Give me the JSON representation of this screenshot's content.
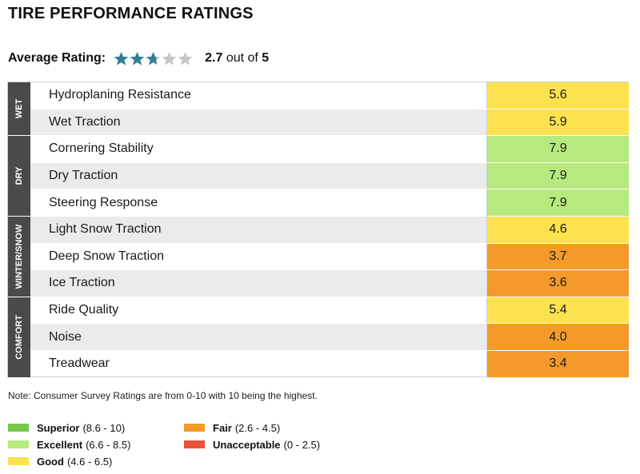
{
  "title": "TIRE PERFORMANCE RATINGS",
  "average": {
    "label": "Average Rating:",
    "value": "2.7",
    "suffix": "out of",
    "max": "5",
    "star_fill": 2.7,
    "star_color": "#2f7f99",
    "star_empty_color": "#c4c4c4"
  },
  "groups": [
    {
      "label": "WET",
      "rows": 2
    },
    {
      "label": "DRY",
      "rows": 3
    },
    {
      "label": "WINTER/SNOW",
      "rows": 3
    },
    {
      "label": "COMFORT",
      "rows": 3
    }
  ],
  "rows": [
    {
      "label": "Hydroplaning Resistance",
      "value": "5.6",
      "color": "#fde24f"
    },
    {
      "label": "Wet Traction",
      "value": "5.9",
      "color": "#fde24f"
    },
    {
      "label": "Cornering Stability",
      "value": "7.9",
      "color": "#b6ea7e"
    },
    {
      "label": "Dry Traction",
      "value": "7.9",
      "color": "#b6ea7e"
    },
    {
      "label": "Steering Response",
      "value": "7.9",
      "color": "#b6ea7e"
    },
    {
      "label": "Light Snow Traction",
      "value": "4.6",
      "color": "#fde24f"
    },
    {
      "label": "Deep Snow Traction",
      "value": "3.7",
      "color": "#f39a2b"
    },
    {
      "label": "Ice Traction",
      "value": "3.6",
      "color": "#f39a2b"
    },
    {
      "label": "Ride Quality",
      "value": "5.4",
      "color": "#fde24f"
    },
    {
      "label": "Noise",
      "value": "4.0",
      "color": "#f39a2b"
    },
    {
      "label": "Treadwear",
      "value": "3.4",
      "color": "#f39a2b"
    }
  ],
  "note": "Note: Consumer Survey Ratings are from 0-10 with 10 being the highest.",
  "legend": [
    {
      "name": "Superior",
      "range": "(8.6 - 10)",
      "color": "#74c949"
    },
    {
      "name": "Excellent",
      "range": "(6.6 - 8.5)",
      "color": "#b6ea7e"
    },
    {
      "name": "Good",
      "range": "(4.6 - 6.5)",
      "color": "#fde24f"
    },
    {
      "name": "Fair",
      "range": "(2.6 - 4.5)",
      "color": "#f39a2b"
    },
    {
      "name": "Unacceptable",
      "range": "(0 - 2.5)",
      "color": "#e8533a"
    }
  ]
}
